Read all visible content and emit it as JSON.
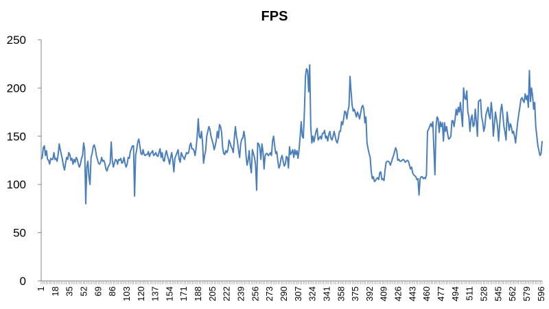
{
  "chart_data": {
    "type": "line",
    "title": "FPS",
    "xlabel": "",
    "ylabel": "",
    "ylim": [
      0,
      250
    ],
    "yticks": [
      0,
      50,
      100,
      150,
      200,
      250
    ],
    "x_start": 1,
    "x_end": 597,
    "x_tick_step": 17,
    "x_tick_labels": [
      "1",
      "18",
      "35",
      "52",
      "69",
      "86",
      "103",
      "120",
      "137",
      "154",
      "171",
      "188",
      "205",
      "222",
      "239",
      "256",
      "273",
      "290",
      "307",
      "324",
      "341",
      "358",
      "375",
      "392",
      "409",
      "426",
      "443",
      "460",
      "477",
      "494",
      "511",
      "528",
      "545",
      "562",
      "579",
      "596"
    ],
    "grid": false,
    "legend": "none",
    "series": [
      {
        "color": "#4A7EBB",
        "values": [
          126,
          128,
          138,
          140,
          130,
          135,
          126,
          125,
          121,
          127,
          126,
          126,
          133,
          126,
          127,
          124,
          131,
          142,
          136,
          131,
          126,
          119,
          115,
          122,
          128,
          126,
          133,
          131,
          125,
          127,
          121,
          126,
          123,
          128,
          126,
          121,
          118,
          121,
          127,
          130,
          143,
          136,
          80,
          118,
          124,
          108,
          100,
          128,
          132,
          139,
          141,
          137,
          130,
          126,
          122,
          121,
          123,
          128,
          124,
          125,
          122,
          116,
          114,
          118,
          120,
          122,
          144,
          125,
          118,
          122,
          126,
          125,
          121,
          126,
          125,
          127,
          122,
          123,
          128,
          122,
          118,
          121,
          128,
          127,
          134,
          137,
          140,
          140,
          88,
          130,
          136,
          144,
          147,
          140,
          132,
          131,
          136,
          131,
          130,
          131,
          131,
          134,
          129,
          132,
          133,
          135,
          130,
          131,
          133,
          130,
          129,
          133,
          137,
          128,
          133,
          125,
          124,
          131,
          135,
          130,
          126,
          121,
          128,
          133,
          125,
          113,
          127,
          130,
          133,
          136,
          126,
          123,
          133,
          130,
          128,
          126,
          130,
          133,
          132,
          133,
          140,
          143,
          137,
          137,
          135,
          130,
          138,
          150,
          168,
          150,
          148,
          155,
          144,
          122,
          130,
          135,
          150,
          155,
          160,
          157,
          150,
          146,
          142,
          136,
          140,
          146,
          155,
          148,
          162,
          160,
          154,
          138,
          132,
          131,
          135,
          133,
          136,
          146,
          143,
          139,
          137,
          133,
          148,
          160,
          150,
          144,
          135,
          128,
          142,
          147,
          148,
          155,
          148,
          130,
          120,
          125,
          135,
          120,
          112,
          136,
          132,
          128,
          120,
          94,
          143,
          142,
          138,
          126,
          142,
          134,
          116,
          130,
          132,
          132,
          130,
          131,
          133,
          130,
          145,
          150,
          140,
          132,
          134,
          124,
          117,
          120,
          127,
          130,
          124,
          119,
          121,
          129,
          128,
          117,
          139,
          131,
          133,
          136,
          128,
          136,
          131,
          135,
          127,
          136,
          150,
          165,
          150,
          148,
          175,
          212,
          220,
          218,
          196,
          224,
          160,
          143,
          150,
          144,
          150,
          155,
          158,
          146,
          148,
          150,
          147,
          153,
          153,
          156,
          148,
          150,
          145,
          152,
          155,
          148,
          146,
          150,
          155,
          150,
          145,
          143,
          148,
          155,
          155,
          165,
          162,
          168,
          176,
          175,
          168,
          176,
          181,
          212,
          196,
          182,
          176,
          178,
          174,
          170,
          175,
          172,
          168,
          174,
          180,
          182,
          178,
          164,
          170,
          143,
          137,
          132,
          128,
          113,
          106,
          108,
          103,
          104,
          106,
          107,
          105,
          112,
          113,
          105,
          106,
          104,
          115,
          123,
          124,
          124,
          123,
          120,
          123,
          127,
          130,
          134,
          138,
          135,
          125,
          126,
          124,
          124,
          125,
          126,
          125,
          123,
          124,
          125,
          124,
          120,
          116,
          118,
          112,
          110,
          109,
          108,
          105,
          106,
          89,
          106,
          108,
          108,
          106,
          107,
          106,
          110,
          155,
          157,
          160,
          163,
          160,
          165,
          137,
          110,
          160,
          170,
          168,
          154,
          165,
          160,
          164,
          145,
          164,
          155,
          160,
          152,
          147,
          148,
          150,
          166,
          166,
          160,
          168,
          178,
          172,
          180,
          175,
          185,
          172,
          160,
          200,
          190,
          188,
          197,
          175,
          170,
          155,
          168,
          172,
          160,
          162,
          178,
          165,
          150,
          186,
          187,
          188,
          170,
          165,
          155,
          160,
          172,
          176,
          180,
          172,
          168,
          185,
          175,
          150,
          162,
          175,
          168,
          160,
          145,
          162,
          177,
          183,
          172,
          160,
          154,
          146,
          175,
          165,
          156,
          163,
          160,
          153,
          155,
          150,
          143,
          155,
          165,
          173,
          180,
          188,
          190,
          187,
          185,
          194,
          188,
          192,
          180,
          218,
          186,
          200,
          192,
          178,
          185,
          160,
          150,
          140,
          135,
          130,
          132,
          145
        ]
      }
    ]
  }
}
